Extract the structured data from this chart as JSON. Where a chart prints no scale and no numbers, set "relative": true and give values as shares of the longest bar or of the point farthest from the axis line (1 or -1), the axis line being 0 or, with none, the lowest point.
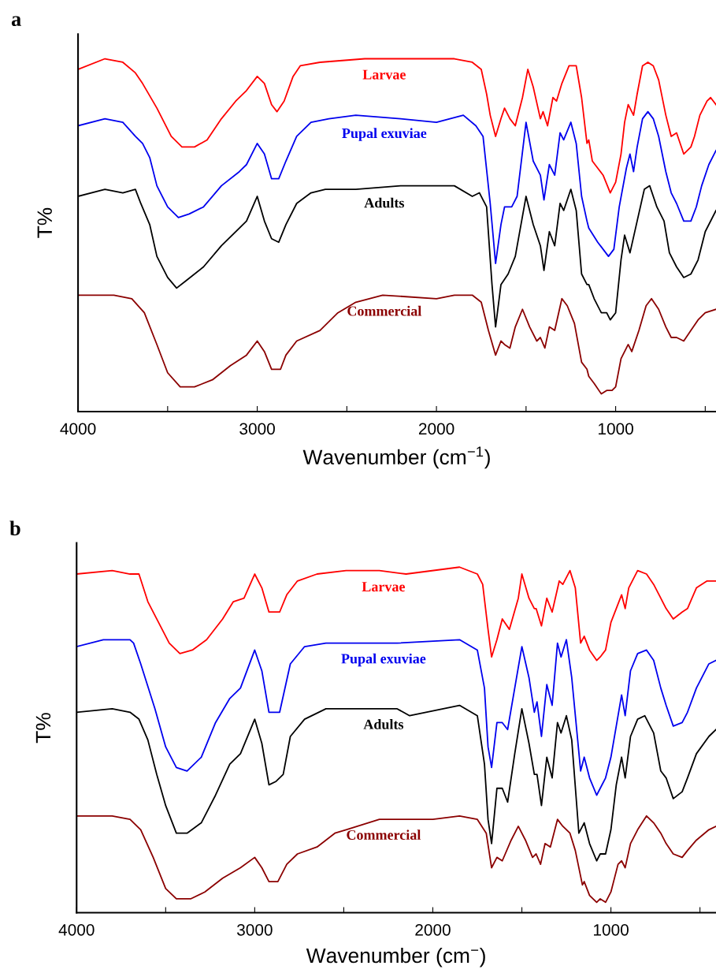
{
  "chart_data": [
    {
      "type": "line",
      "title": "a",
      "xlabel": "Wavenumber (cm$^{−1}$)",
      "ylabel": "T%",
      "relative": true,
      "xlim": [
        4000,
        440
      ],
      "xticks": [
        4000,
        {
          "value": 3500,
          "label": null
        },
        3000,
        {
          "value": 2500,
          "label": null
        },
        2000,
        {
          "value": 1500,
          "label": null
        },
        1000,
        {
          "value": 500,
          "label": null
        }
      ],
      "series": [
        {
          "name": "Larvae",
          "color": "#ff0000",
          "x": [
            4000,
            3850,
            3750,
            3680,
            3640,
            3560,
            3480,
            3420,
            3350,
            3280,
            3200,
            3120,
            3060,
            3000,
            2960,
            2920,
            2890,
            2850,
            2800,
            2760,
            2650,
            2400,
            1900,
            1800,
            1750,
            1720,
            1700,
            1670,
            1640,
            1620,
            1590,
            1560,
            1520,
            1490,
            1460,
            1420,
            1405,
            1380,
            1350,
            1330,
            1300,
            1260,
            1220,
            1190,
            1160,
            1150,
            1130,
            1100,
            1070,
            1030,
            1000,
            970,
            950,
            930,
            900,
            880,
            850,
            820,
            790,
            760,
            720,
            690,
            660,
            620,
            580,
            560,
            530,
            490,
            470,
            440
          ],
          "values": [
            0.97,
            1.0,
            0.99,
            0.96,
            0.93,
            0.86,
            0.78,
            0.75,
            0.75,
            0.77,
            0.83,
            0.88,
            0.91,
            0.95,
            0.93,
            0.87,
            0.85,
            0.88,
            0.95,
            0.98,
            0.99,
            1.0,
            1.0,
            0.99,
            0.97,
            0.9,
            0.84,
            0.78,
            0.83,
            0.86,
            0.83,
            0.81,
            0.89,
            0.97,
            0.92,
            0.83,
            0.85,
            0.81,
            0.89,
            0.88,
            0.93,
            0.98,
            0.98,
            0.89,
            0.76,
            0.77,
            0.71,
            0.69,
            0.67,
            0.62,
            0.65,
            0.73,
            0.82,
            0.87,
            0.84,
            0.9,
            0.98,
            0.99,
            0.98,
            0.94,
            0.84,
            0.78,
            0.79,
            0.73,
            0.75,
            0.78,
            0.84,
            0.88,
            0.89,
            0.87
          ]
        },
        {
          "name": "Pupal exuviae",
          "color": "#0000ee",
          "x": [
            4000,
            3850,
            3750,
            3680,
            3640,
            3600,
            3560,
            3500,
            3440,
            3380,
            3300,
            3200,
            3100,
            3060,
            3000,
            2960,
            2920,
            2880,
            2840,
            2780,
            2700,
            2600,
            2450,
            2200,
            2000,
            1850,
            1780,
            1740,
            1700,
            1670,
            1640,
            1620,
            1580,
            1550,
            1500,
            1460,
            1420,
            1400,
            1370,
            1340,
            1310,
            1290,
            1250,
            1220,
            1190,
            1160,
            1150,
            1100,
            1070,
            1040,
            1010,
            980,
            940,
            920,
            900,
            880,
            850,
            820,
            790,
            760,
            720,
            690,
            660,
            620,
            580,
            550,
            520,
            480,
            440
          ],
          "values": [
            0.81,
            0.83,
            0.82,
            0.78,
            0.76,
            0.72,
            0.64,
            0.58,
            0.55,
            0.56,
            0.58,
            0.64,
            0.68,
            0.7,
            0.76,
            0.73,
            0.66,
            0.66,
            0.71,
            0.78,
            0.82,
            0.83,
            0.84,
            0.83,
            0.82,
            0.84,
            0.81,
            0.78,
            0.59,
            0.42,
            0.53,
            0.58,
            0.58,
            0.61,
            0.82,
            0.71,
            0.67,
            0.6,
            0.7,
            0.67,
            0.79,
            0.77,
            0.82,
            0.76,
            0.61,
            0.54,
            0.52,
            0.48,
            0.46,
            0.44,
            0.46,
            0.58,
            0.69,
            0.73,
            0.68,
            0.75,
            0.83,
            0.85,
            0.83,
            0.78,
            0.68,
            0.62,
            0.59,
            0.54,
            0.54,
            0.58,
            0.64,
            0.7,
            0.74
          ]
        },
        {
          "name": "Adults",
          "color": "#000000",
          "x": [
            4000,
            3850,
            3750,
            3680,
            3650,
            3600,
            3560,
            3500,
            3450,
            3400,
            3300,
            3200,
            3100,
            3060,
            3000,
            2960,
            2920,
            2880,
            2840,
            2780,
            2700,
            2620,
            2450,
            2200,
            2000,
            1900,
            1800,
            1760,
            1720,
            1690,
            1670,
            1640,
            1600,
            1560,
            1500,
            1460,
            1420,
            1400,
            1370,
            1340,
            1310,
            1290,
            1250,
            1220,
            1190,
            1160,
            1150,
            1120,
            1080,
            1050,
            1030,
            1000,
            970,
            950,
            920,
            880,
            840,
            810,
            770,
            730,
            700,
            660,
            620,
            580,
            540,
            500,
            440
          ],
          "values": [
            0.61,
            0.63,
            0.62,
            0.63,
            0.59,
            0.53,
            0.44,
            0.38,
            0.35,
            0.37,
            0.41,
            0.47,
            0.52,
            0.54,
            0.61,
            0.54,
            0.49,
            0.48,
            0.53,
            0.59,
            0.62,
            0.63,
            0.63,
            0.64,
            0.64,
            0.64,
            0.61,
            0.62,
            0.58,
            0.36,
            0.24,
            0.36,
            0.39,
            0.44,
            0.61,
            0.53,
            0.47,
            0.4,
            0.51,
            0.47,
            0.59,
            0.57,
            0.63,
            0.57,
            0.39,
            0.36,
            0.36,
            0.32,
            0.28,
            0.28,
            0.26,
            0.28,
            0.43,
            0.5,
            0.45,
            0.54,
            0.63,
            0.64,
            0.58,
            0.54,
            0.45,
            0.41,
            0.38,
            0.39,
            0.43,
            0.51,
            0.57
          ]
        },
        {
          "name": "Commercial",
          "color": "#8b0000",
          "x": [
            4000,
            3800,
            3700,
            3630,
            3560,
            3500,
            3430,
            3350,
            3250,
            3150,
            3060,
            3000,
            2960,
            2920,
            2870,
            2840,
            2780,
            2650,
            2550,
            2450,
            2300,
            2000,
            1900,
            1800,
            1750,
            1710,
            1670,
            1640,
            1620,
            1590,
            1560,
            1520,
            1480,
            1440,
            1420,
            1395,
            1370,
            1340,
            1300,
            1270,
            1230,
            1190,
            1160,
            1150,
            1120,
            1080,
            1050,
            1020,
            1000,
            970,
            930,
            910,
            870,
            830,
            800,
            760,
            720,
            690,
            660,
            620,
            580,
            540,
            500,
            440
          ],
          "values": [
            0.33,
            0.33,
            0.32,
            0.28,
            0.19,
            0.11,
            0.07,
            0.07,
            0.09,
            0.13,
            0.16,
            0.2,
            0.17,
            0.12,
            0.12,
            0.16,
            0.2,
            0.23,
            0.28,
            0.31,
            0.33,
            0.32,
            0.33,
            0.33,
            0.31,
            0.23,
            0.16,
            0.2,
            0.19,
            0.18,
            0.24,
            0.29,
            0.24,
            0.2,
            0.21,
            0.18,
            0.24,
            0.23,
            0.32,
            0.3,
            0.25,
            0.14,
            0.12,
            0.1,
            0.08,
            0.05,
            0.06,
            0.06,
            0.07,
            0.15,
            0.19,
            0.17,
            0.23,
            0.3,
            0.32,
            0.29,
            0.24,
            0.21,
            0.21,
            0.2,
            0.23,
            0.26,
            0.28,
            0.29
          ]
        }
      ]
    },
    {
      "type": "line",
      "title": "b",
      "xlabel": "Wavenumber (cm$^{−}$)",
      "ylabel": "T%",
      "relative": true,
      "xlim": [
        4000,
        410
      ],
      "xticks": [
        4000,
        {
          "value": 3500,
          "label": null
        },
        3000,
        {
          "value": 2500,
          "label": null
        },
        2000,
        {
          "value": 1500,
          "label": null
        },
        1000,
        {
          "value": 500,
          "label": null
        }
      ],
      "series": [
        {
          "name": "Larvae",
          "color": "#ff0000",
          "x": [
            4000,
            3800,
            3700,
            3650,
            3600,
            3540,
            3480,
            3420,
            3350,
            3270,
            3180,
            3120,
            3060,
            3000,
            2960,
            2920,
            2890,
            2860,
            2820,
            2760,
            2650,
            2487,
            2300,
            2150,
            1850,
            1750,
            1720,
            1690,
            1670,
            1640,
            1610,
            1570,
            1520,
            1500,
            1460,
            1430,
            1420,
            1390,
            1360,
            1330,
            1290,
            1270,
            1230,
            1200,
            1170,
            1150,
            1120,
            1080,
            1060,
            1030,
            1000,
            970,
            940,
            920,
            900,
            850,
            800,
            760,
            720,
            690,
            650,
            600,
            570,
            520,
            460,
            410
          ],
          "values": [
            0.98,
            0.99,
            0.98,
            0.98,
            0.9,
            0.84,
            0.78,
            0.75,
            0.76,
            0.79,
            0.85,
            0.9,
            0.91,
            0.98,
            0.94,
            0.87,
            0.87,
            0.87,
            0.92,
            0.96,
            0.98,
            0.99,
            0.99,
            0.98,
            1.0,
            0.98,
            0.95,
            0.82,
            0.74,
            0.79,
            0.85,
            0.82,
            0.91,
            0.98,
            0.91,
            0.88,
            0.88,
            0.83,
            0.91,
            0.87,
            0.96,
            0.95,
            0.99,
            0.94,
            0.78,
            0.8,
            0.76,
            0.73,
            0.74,
            0.76,
            0.84,
            0.88,
            0.92,
            0.88,
            0.94,
            0.99,
            0.98,
            0.95,
            0.91,
            0.88,
            0.85,
            0.87,
            0.88,
            0.94,
            0.96,
            0.96
          ]
        },
        {
          "name": "Pupal exuviae",
          "color": "#0000ee",
          "x": [
            4000,
            3850,
            3700,
            3680,
            3640,
            3560,
            3500,
            3440,
            3380,
            3300,
            3220,
            3140,
            3080,
            3000,
            2960,
            2920,
            2880,
            2860,
            2800,
            2720,
            2600,
            2487,
            2200,
            1850,
            1750,
            1710,
            1690,
            1670,
            1640,
            1610,
            1580,
            1540,
            1500,
            1460,
            1430,
            1415,
            1390,
            1360,
            1330,
            1300,
            1280,
            1250,
            1220,
            1170,
            1150,
            1120,
            1080,
            1060,
            1030,
            1000,
            970,
            940,
            920,
            890,
            850,
            800,
            760,
            720,
            690,
            650,
            600,
            570,
            520,
            450,
            410
          ],
          "values": [
            0.77,
            0.79,
            0.79,
            0.78,
            0.72,
            0.59,
            0.48,
            0.42,
            0.41,
            0.45,
            0.55,
            0.62,
            0.65,
            0.76,
            0.7,
            0.58,
            0.58,
            0.58,
            0.72,
            0.77,
            0.78,
            0.78,
            0.78,
            0.79,
            0.76,
            0.65,
            0.48,
            0.42,
            0.55,
            0.55,
            0.53,
            0.65,
            0.77,
            0.68,
            0.58,
            0.61,
            0.51,
            0.66,
            0.6,
            0.78,
            0.74,
            0.79,
            0.68,
            0.41,
            0.45,
            0.39,
            0.34,
            0.36,
            0.39,
            0.45,
            0.54,
            0.63,
            0.57,
            0.7,
            0.75,
            0.76,
            0.73,
            0.65,
            0.6,
            0.54,
            0.55,
            0.58,
            0.65,
            0.72,
            0.73
          ]
        },
        {
          "name": "Adults",
          "color": "#000000",
          "x": [
            4000,
            3800,
            3700,
            3650,
            3600,
            3550,
            3500,
            3440,
            3380,
            3300,
            3220,
            3140,
            3080,
            3000,
            2960,
            2920,
            2880,
            2840,
            2800,
            2720,
            2600,
            2487,
            2200,
            2130,
            1850,
            1750,
            1710,
            1690,
            1670,
            1640,
            1610,
            1580,
            1540,
            1500,
            1460,
            1430,
            1415,
            1390,
            1360,
            1330,
            1300,
            1280,
            1250,
            1220,
            1180,
            1150,
            1120,
            1080,
            1060,
            1030,
            1000,
            970,
            940,
            920,
            890,
            850,
            810,
            760,
            720,
            690,
            650,
            600,
            570,
            520,
            450,
            410
          ],
          "values": [
            0.58,
            0.59,
            0.58,
            0.56,
            0.5,
            0.4,
            0.31,
            0.23,
            0.23,
            0.26,
            0.34,
            0.43,
            0.46,
            0.56,
            0.49,
            0.37,
            0.38,
            0.4,
            0.51,
            0.56,
            0.59,
            0.59,
            0.59,
            0.57,
            0.6,
            0.57,
            0.43,
            0.27,
            0.2,
            0.36,
            0.36,
            0.32,
            0.46,
            0.59,
            0.49,
            0.4,
            0.4,
            0.31,
            0.45,
            0.39,
            0.55,
            0.52,
            0.57,
            0.5,
            0.23,
            0.26,
            0.2,
            0.15,
            0.17,
            0.17,
            0.24,
            0.37,
            0.45,
            0.39,
            0.51,
            0.56,
            0.57,
            0.52,
            0.41,
            0.39,
            0.33,
            0.35,
            0.39,
            0.46,
            0.51,
            0.53
          ]
        },
        {
          "name": "Commercial",
          "color": "#8b0000",
          "x": [
            4000,
            3800,
            3700,
            3640,
            3570,
            3500,
            3440,
            3360,
            3280,
            3180,
            3080,
            3000,
            2960,
            2920,
            2870,
            2820,
            2760,
            2650,
            2550,
            2487,
            2300,
            2000,
            1850,
            1750,
            1700,
            1670,
            1640,
            1610,
            1560,
            1520,
            1480,
            1440,
            1420,
            1395,
            1370,
            1340,
            1300,
            1270,
            1230,
            1200,
            1160,
            1150,
            1120,
            1080,
            1060,
            1030,
            1000,
            960,
            940,
            920,
            890,
            850,
            800,
            760,
            720,
            690,
            650,
            600,
            570,
            520,
            450,
            410
          ],
          "values": [
            0.28,
            0.28,
            0.27,
            0.24,
            0.16,
            0.07,
            0.04,
            0.04,
            0.06,
            0.1,
            0.13,
            0.16,
            0.13,
            0.09,
            0.09,
            0.14,
            0.17,
            0.19,
            0.23,
            0.24,
            0.27,
            0.27,
            0.28,
            0.27,
            0.23,
            0.13,
            0.16,
            0.15,
            0.21,
            0.25,
            0.21,
            0.16,
            0.17,
            0.14,
            0.2,
            0.19,
            0.27,
            0.25,
            0.23,
            0.18,
            0.08,
            0.09,
            0.05,
            0.03,
            0.04,
            0.03,
            0.06,
            0.14,
            0.15,
            0.13,
            0.2,
            0.24,
            0.28,
            0.26,
            0.23,
            0.2,
            0.17,
            0.16,
            0.18,
            0.21,
            0.24,
            0.25
          ]
        }
      ]
    }
  ]
}
